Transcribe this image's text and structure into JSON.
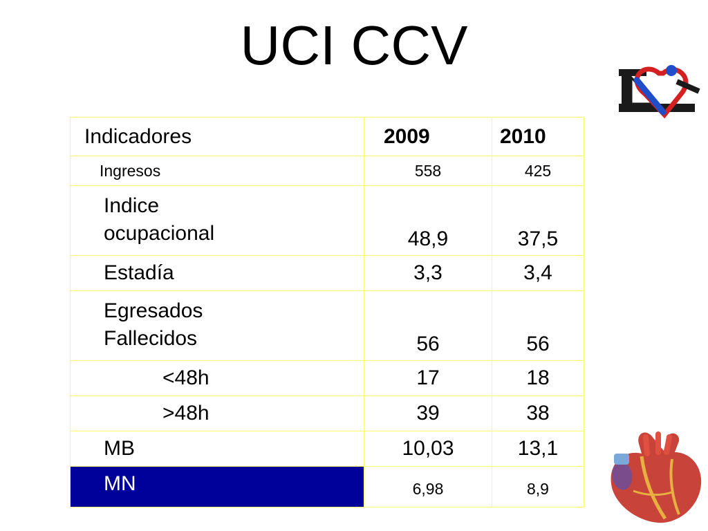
{
  "slide": {
    "title": "UCI CCV"
  },
  "logos": {
    "top_right": "ISC heart logo",
    "bottom_right": "anatomical-heart-illustration"
  },
  "table": {
    "headers": [
      "Indicadores",
      "2009",
      "2010"
    ],
    "rows": [
      {
        "label": "Ingresos",
        "v2009": "558",
        "v2010": "425"
      },
      {
        "label_line1": "Indice",
        "label_line2": "ocupacional",
        "v2009": "48,9",
        "v2010": "37,5"
      },
      {
        "label": "Estadía",
        "v2009": "3,3",
        "v2010": "3,4"
      },
      {
        "label_line1": "Egresados",
        "label_line2": "Fallecidos",
        "v2009": "56",
        "v2010": "56"
      },
      {
        "label": "<48h",
        "v2009": "17",
        "v2010": "18"
      },
      {
        "label": ">48h",
        "v2009": "39",
        "v2010": "38"
      },
      {
        "label": "MB",
        "v2009": "10,03",
        "v2010": "13,1"
      },
      {
        "label": "MN",
        "v2009": "6,98",
        "v2010": "8,9"
      }
    ]
  },
  "colors": {
    "table_border": "#ffff66",
    "highlight_cell": "#00009a"
  }
}
